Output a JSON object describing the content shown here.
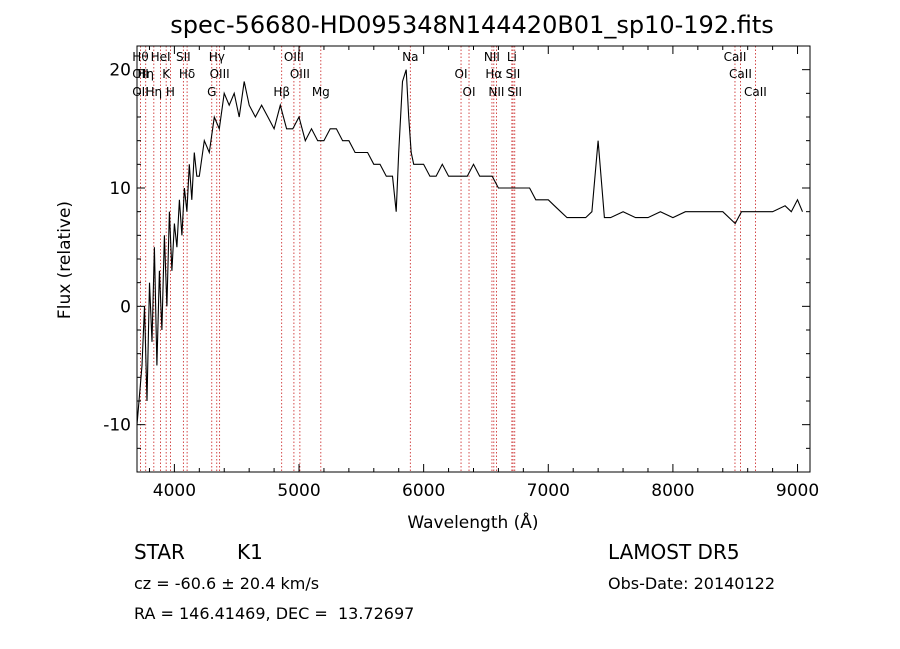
{
  "chart_data": {
    "type": "line",
    "title": "spec-56680-HD095348N144420B01_sp10-192.fits",
    "xlabel": "Wavelength (Å)",
    "ylabel": "Flux (relative)",
    "xlim": [
      3700,
      9100
    ],
    "ylim": [
      -14,
      22
    ],
    "xticks": [
      4000,
      5000,
      6000,
      7000,
      8000,
      9000
    ],
    "yticks": [
      -10,
      0,
      10,
      20
    ],
    "grid": false,
    "series": [
      {
        "x": [
          3700,
          3740,
          3760,
          3780,
          3800,
          3820,
          3840,
          3860,
          3880,
          3900,
          3920,
          3940,
          3960,
          3980,
          4000,
          4020,
          4040,
          4060,
          4080,
          4100,
          4120,
          4140,
          4160,
          4180,
          4200,
          4240,
          4280,
          4320,
          4360,
          4400,
          4440,
          4480,
          4520,
          4560,
          4600,
          4650,
          4700,
          4750,
          4800,
          4850,
          4900,
          4950,
          5000,
          5050,
          5100,
          5150,
          5200,
          5250,
          5300,
          5350,
          5400,
          5450,
          5500,
          5550,
          5600,
          5650,
          5700,
          5750,
          5780,
          5800,
          5830,
          5860,
          5880,
          5900,
          5920,
          5950,
          6000,
          6050,
          6100,
          6150,
          6200,
          6250,
          6300,
          6350,
          6400,
          6450,
          6500,
          6550,
          6600,
          6650,
          6700,
          6750,
          6800,
          6850,
          6900,
          6950,
          7000,
          7050,
          7100,
          7150,
          7200,
          7250,
          7300,
          7350,
          7400,
          7450,
          7500,
          7600,
          7700,
          7800,
          7900,
          8000,
          8100,
          8200,
          8300,
          8400,
          8500,
          8550,
          8600,
          8700,
          8800,
          8900,
          8950,
          9000,
          9040
        ],
        "y": [
          -10,
          -5,
          0,
          -8,
          2,
          -3,
          5,
          -5,
          3,
          -2,
          6,
          0,
          8,
          3,
          7,
          5,
          9,
          6,
          10,
          8,
          12,
          9,
          13,
          11,
          11,
          14,
          13,
          16,
          15,
          18,
          17,
          18,
          16,
          19,
          17,
          16,
          17,
          16,
          15,
          17,
          15,
          15,
          16,
          14,
          15,
          14,
          14,
          15,
          15,
          14,
          14,
          13,
          13,
          13,
          12,
          12,
          11,
          11,
          8,
          13,
          19,
          20,
          16,
          13,
          12,
          12,
          12,
          11,
          11,
          12,
          11,
          11,
          11,
          11,
          12,
          11,
          11,
          11,
          10,
          10,
          10,
          10,
          10,
          10,
          9,
          9,
          9,
          8.5,
          8,
          7.5,
          7.5,
          7.5,
          7.5,
          8,
          14,
          7.5,
          7.5,
          8,
          7.5,
          7.5,
          8,
          7.5,
          8,
          8,
          8,
          8,
          7,
          8,
          8,
          8,
          8,
          8.5,
          8,
          9,
          8
        ]
      }
    ],
    "annotations": [
      {
        "x": 3728,
        "labels": [
          "Hθ",
          "OII",
          "OII"
        ]
      },
      {
        "x": 3770,
        "labels": [
          "Hη"
        ]
      },
      {
        "x": 3835,
        "labels": [
          "Hη"
        ]
      },
      {
        "x": 3889,
        "labels": [
          "HeI"
        ]
      },
      {
        "x": 3934,
        "labels": [
          "K"
        ]
      },
      {
        "x": 3968,
        "labels": [
          "H"
        ]
      },
      {
        "x": 4072,
        "labels": [
          "SII"
        ]
      },
      {
        "x": 4102,
        "labels": [
          "Hδ"
        ]
      },
      {
        "x": 4300,
        "labels": [
          "G"
        ]
      },
      {
        "x": 4340,
        "labels": [
          "Hγ"
        ]
      },
      {
        "x": 4363,
        "labels": [
          "OIII"
        ]
      },
      {
        "x": 4861,
        "labels": [
          "Hβ"
        ]
      },
      {
        "x": 4959,
        "labels": [
          "OIII"
        ]
      },
      {
        "x": 5007,
        "labels": [
          "OIII"
        ]
      },
      {
        "x": 5175,
        "labels": [
          "Mg"
        ]
      },
      {
        "x": 5893,
        "labels": [
          "Na"
        ]
      },
      {
        "x": 6300,
        "labels": [
          "OI"
        ]
      },
      {
        "x": 6364,
        "labels": [
          "OI"
        ]
      },
      {
        "x": 6548,
        "labels": [
          "NII"
        ]
      },
      {
        "x": 6563,
        "labels": [
          "Hα"
        ]
      },
      {
        "x": 6584,
        "labels": [
          "NII"
        ]
      },
      {
        "x": 6708,
        "labels": [
          "Li"
        ]
      },
      {
        "x": 6717,
        "labels": [
          "SII"
        ]
      },
      {
        "x": 6731,
        "labels": [
          "SII"
        ]
      },
      {
        "x": 8498,
        "labels": [
          "CaII"
        ]
      },
      {
        "x": 8542,
        "labels": [
          "CaII"
        ]
      },
      {
        "x": 8662,
        "labels": [
          "CaII"
        ]
      }
    ]
  },
  "info": {
    "class_label": "STAR",
    "subclass": "K1",
    "survey": "LAMOST DR5",
    "cz": "cz = -60.6 ± 20.4 km/s",
    "obs_date": "Obs-Date: 20140122",
    "radec": "RA = 146.41469, DEC =  13.72697"
  }
}
